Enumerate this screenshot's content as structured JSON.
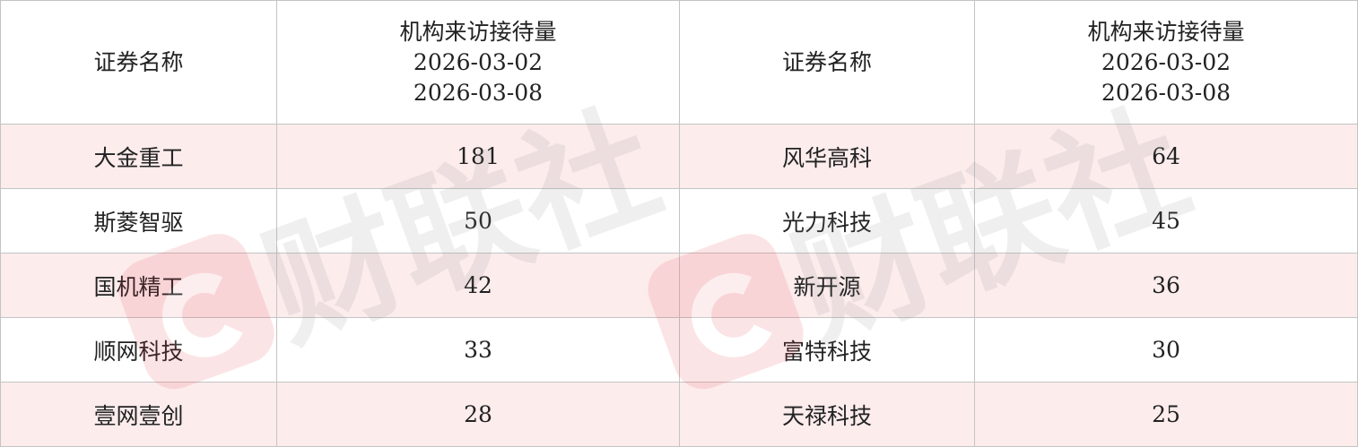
{
  "headers": [
    {
      "name": "证券名称"
    },
    {
      "line1": "机构来访接待量",
      "line2": "2026-03-02",
      "line3": "2026-03-08"
    },
    {
      "name": "证券名称"
    },
    {
      "line1": "机构来访接待量",
      "line2": "2026-03-02",
      "line3": "2026-03-08"
    }
  ],
  "rows": [
    {
      "left_name": "大金重工",
      "left_count": "181",
      "right_name": "风华高科",
      "right_count": "64"
    },
    {
      "left_name": "斯菱智驱",
      "left_count": "50",
      "right_name": "光力科技",
      "right_count": "45"
    },
    {
      "left_name": "国机精工",
      "left_count": "42",
      "right_name": "新开源",
      "right_count": "36"
    },
    {
      "left_name": "顺网科技",
      "left_count": "33",
      "right_name": "富特科技",
      "right_count": "30"
    },
    {
      "left_name": "壹网壹创",
      "left_count": "28",
      "right_name": "天禄科技",
      "right_count": "25"
    }
  ],
  "watermark": "财联社",
  "colors": {
    "alt_row": "#fcecec",
    "border": "#c4c4c4",
    "watermark_logo": "#e8394a"
  }
}
